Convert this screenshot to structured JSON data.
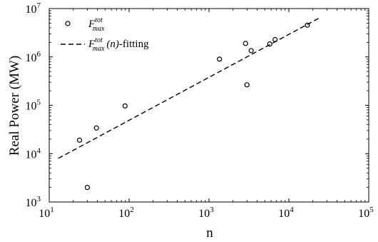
{
  "chart_data": {
    "type": "scatter",
    "title": "",
    "xlabel": "n",
    "ylabel": "Real Power (MW)",
    "xscale": "log",
    "yscale": "log",
    "xlim": [
      10,
      100000
    ],
    "ylim": [
      1000,
      10000000
    ],
    "grid": false,
    "legend_position": "top-left",
    "x_ticks": [
      {
        "base": "10",
        "exp": "1",
        "value": 10
      },
      {
        "base": "10",
        "exp": "2",
        "value": 100
      },
      {
        "base": "10",
        "exp": "3",
        "value": 1000
      },
      {
        "base": "10",
        "exp": "4",
        "value": 10000
      },
      {
        "base": "10",
        "exp": "5",
        "value": 100000
      }
    ],
    "y_ticks": [
      {
        "base": "10",
        "exp": "3",
        "value": 1000
      },
      {
        "base": "10",
        "exp": "4",
        "value": 10000
      },
      {
        "base": "10",
        "exp": "5",
        "value": 100000
      },
      {
        "base": "10",
        "exp": "6",
        "value": 1000000
      },
      {
        "base": "10",
        "exp": "7",
        "value": 10000000
      }
    ],
    "series": [
      {
        "legend_label": "F_max^tot",
        "style": "open-circle-markers",
        "color": "#000000",
        "points": [
          {
            "x": 24,
            "y": 19000
          },
          {
            "x": 30,
            "y": 2000
          },
          {
            "x": 39,
            "y": 34000
          },
          {
            "x": 89,
            "y": 97000
          },
          {
            "x": 1354,
            "y": 900000
          },
          {
            "x": 2869,
            "y": 1900000
          },
          {
            "x": 2988,
            "y": 265000
          },
          {
            "x": 3375,
            "y": 1350000
          },
          {
            "x": 5773,
            "y": 1850000
          },
          {
            "x": 6726,
            "y": 2280000
          },
          {
            "x": 17062,
            "y": 4550000
          }
        ]
      },
      {
        "legend_label": "F_max^tot (n)-fitting",
        "style": "dashed-line",
        "color": "#000000",
        "points": [
          {
            "x": 13,
            "y": 8000
          },
          {
            "x": 25000,
            "y": 6600000
          }
        ]
      }
    ]
  }
}
